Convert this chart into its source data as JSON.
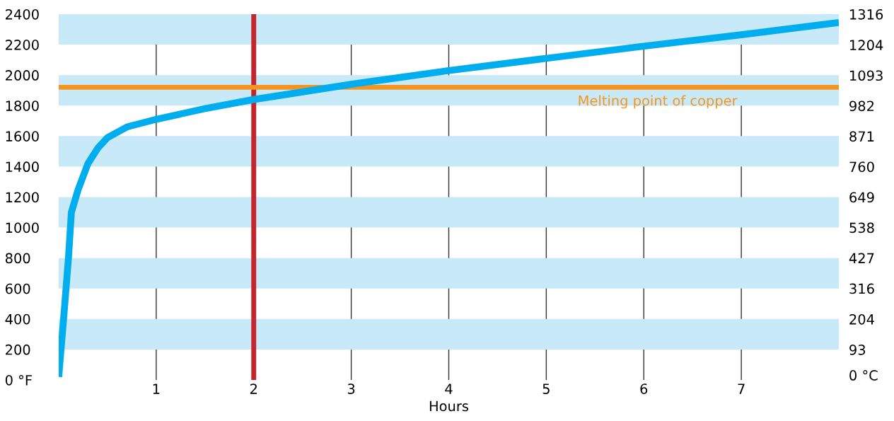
{
  "chart_data": {
    "type": "line",
    "xlabel": "Hours",
    "x": [
      0,
      0.05,
      0.1,
      0.13,
      0.2,
      0.3,
      0.4,
      0.5,
      0.7,
      1,
      1.5,
      2,
      2.5,
      3,
      4,
      5,
      6,
      7,
      8
    ],
    "series": [
      {
        "color": "#00aeef",
        "values": [
          20,
          400,
          800,
          1100,
          1250,
          1420,
          1520,
          1590,
          1660,
          1710,
          1780,
          1840,
          1890,
          1940,
          2030,
          2110,
          2190,
          2265,
          2345
        ]
      }
    ],
    "xlim": [
      0,
      8
    ],
    "xticks": [
      1,
      2,
      3,
      4,
      5,
      6,
      7
    ],
    "ylim": [
      0,
      2400
    ],
    "yticks": [
      {
        "value": 0,
        "label": "0 °F"
      },
      200,
      400,
      600,
      800,
      1000,
      1200,
      1400,
      1600,
      1800,
      2000,
      2200,
      2400
    ],
    "y2lim": [
      -17.8,
      1316
    ],
    "y2ticks": [
      {
        "value": 0,
        "label": "0 °C"
      },
      93,
      204,
      316,
      427,
      538,
      649,
      760,
      871,
      982,
      1093,
      1204,
      1316
    ],
    "bands": [
      {
        "axis": "y",
        "from": 200,
        "to": 400,
        "color": "#c8e9f8"
      },
      {
        "axis": "y",
        "from": 600,
        "to": 800,
        "color": "#c8e9f8"
      },
      {
        "axis": "y",
        "from": 1000,
        "to": 1200,
        "color": "#c8e9f8"
      },
      {
        "axis": "y",
        "from": 1400,
        "to": 1600,
        "color": "#c8e9f8"
      },
      {
        "axis": "y",
        "from": 1800,
        "to": 2000,
        "color": "#c8e9f8"
      },
      {
        "axis": "y",
        "from": 2200,
        "to": 2400,
        "color": "#c8e9f8"
      }
    ],
    "ref_lines": [
      {
        "axis": "x",
        "value": 2,
        "color": "#c1272d"
      },
      {
        "axis": "y",
        "value": 1920,
        "label": "Melting point of copper",
        "color": "#f7941d"
      }
    ],
    "grid": "x"
  }
}
